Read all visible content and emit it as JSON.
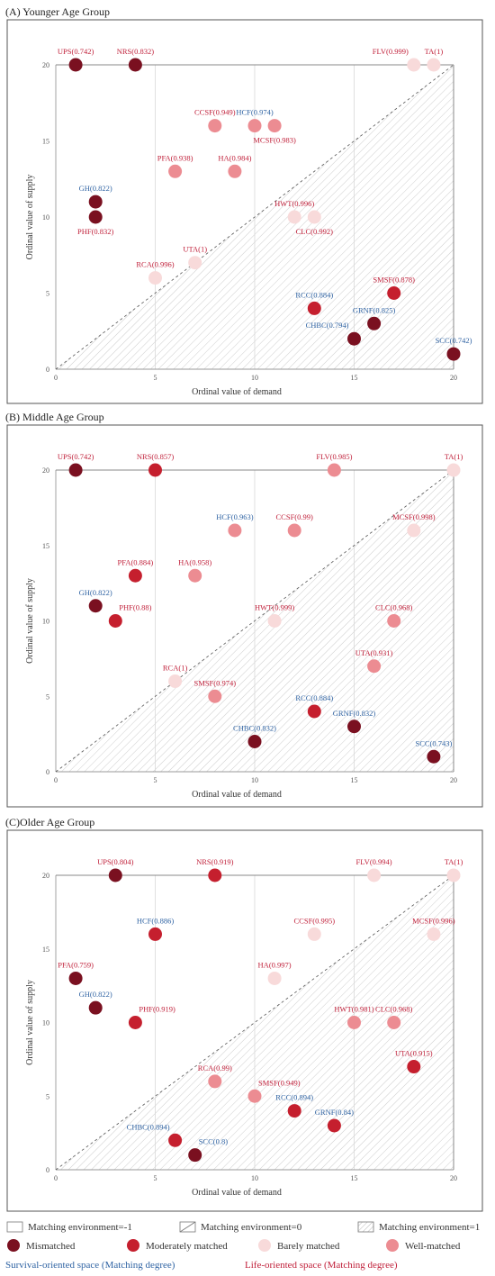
{
  "colors": {
    "Mismatched": "#7a1020",
    "Moderately matched": "#c51f2e",
    "Barely matched": "#f8dada",
    "Well-matched": "#ec8c92",
    "survival": "#2f63a3",
    "life": "#c0203a"
  },
  "chart_data": [
    {
      "type": "scatter",
      "title": "(A) Younger Age Group",
      "xlabel": "Ordinal  value of demand",
      "ylabel": "Ordinal  value of supply",
      "xlim": [
        0,
        20
      ],
      "ylim": [
        0,
        20
      ],
      "xticks": [
        "0",
        "5",
        "10",
        "15",
        "20"
      ],
      "yticks": [
        "0",
        "5",
        "10",
        "15",
        "20"
      ],
      "points": [
        {
          "label": "UPS(0.742)",
          "x": 1,
          "y": 20,
          "cat": "Mismatched",
          "space": "life",
          "lp": "above"
        },
        {
          "label": "NRS(0.832)",
          "x": 4,
          "y": 20,
          "cat": "Mismatched",
          "space": "life",
          "lp": "above"
        },
        {
          "label": "FLV(0.999)",
          "x": 18,
          "y": 20,
          "cat": "Barely matched",
          "space": "life",
          "lp": "above-left"
        },
        {
          "label": "TA(1)",
          "x": 19,
          "y": 20,
          "cat": "Barely matched",
          "space": "life",
          "lp": "above"
        },
        {
          "label": "CCSF(0.949)",
          "x": 8,
          "y": 16,
          "cat": "Well-matched",
          "space": "life",
          "lp": "above"
        },
        {
          "label": "HCF(0.974)",
          "x": 10,
          "y": 16,
          "cat": "Well-matched",
          "space": "survival",
          "lp": "above"
        },
        {
          "label": "MCSF(0.983)",
          "x": 11,
          "y": 16,
          "cat": "Well-matched",
          "space": "life",
          "lp": "below"
        },
        {
          "label": "PFA(0.938)",
          "x": 6,
          "y": 13,
          "cat": "Well-matched",
          "space": "life",
          "lp": "above"
        },
        {
          "label": "HA(0.984)",
          "x": 9,
          "y": 13,
          "cat": "Well-matched",
          "space": "life",
          "lp": "above"
        },
        {
          "label": "GH(0.822)",
          "x": 2,
          "y": 11,
          "cat": "Mismatched",
          "space": "survival",
          "lp": "above"
        },
        {
          "label": "PHF(0.832)",
          "x": 2,
          "y": 10,
          "cat": "Mismatched",
          "space": "life",
          "lp": "below"
        },
        {
          "label": "HWT(0.996)",
          "x": 12,
          "y": 10,
          "cat": "Barely matched",
          "space": "life",
          "lp": "above"
        },
        {
          "label": "CLC(0.992)",
          "x": 13,
          "y": 10,
          "cat": "Barely matched",
          "space": "life",
          "lp": "below"
        },
        {
          "label": "UTA(1)",
          "x": 7,
          "y": 7,
          "cat": "Barely matched",
          "space": "life",
          "lp": "above"
        },
        {
          "label": "RCA(0.996)",
          "x": 5,
          "y": 6,
          "cat": "Barely matched",
          "space": "life",
          "lp": "above"
        },
        {
          "label": "SMSF(0.878)",
          "x": 17,
          "y": 5,
          "cat": "Moderately matched",
          "space": "life",
          "lp": "above"
        },
        {
          "label": "RCC(0.884)",
          "x": 13,
          "y": 4,
          "cat": "Moderately matched",
          "space": "survival",
          "lp": "above"
        },
        {
          "label": "GRNF(0.825)",
          "x": 16,
          "y": 3,
          "cat": "Mismatched",
          "space": "survival",
          "lp": "above"
        },
        {
          "label": "CHBC(0.794)",
          "x": 15,
          "y": 2,
          "cat": "Mismatched",
          "space": "survival",
          "lp": "above-left"
        },
        {
          "label": "SCC(0.742)",
          "x": 20,
          "y": 1,
          "cat": "Mismatched",
          "space": "survival",
          "lp": "above"
        }
      ]
    },
    {
      "type": "scatter",
      "title": "(B) Middle Age Group",
      "xlabel": "Ordinal value of demand",
      "ylabel": "Ordinal value of supply",
      "xlim": [
        0,
        20
      ],
      "ylim": [
        0,
        20
      ],
      "xticks": [
        "0",
        "5",
        "10",
        "15",
        "20"
      ],
      "yticks": [
        "0",
        "5",
        "10",
        "15",
        "20"
      ],
      "points": [
        {
          "label": "UPS(0.742)",
          "x": 1,
          "y": 20,
          "cat": "Mismatched",
          "space": "life",
          "lp": "above"
        },
        {
          "label": "NRS(0.857)",
          "x": 5,
          "y": 20,
          "cat": "Moderately matched",
          "space": "life",
          "lp": "above"
        },
        {
          "label": "FLV(0.985)",
          "x": 14,
          "y": 20,
          "cat": "Well-matched",
          "space": "life",
          "lp": "above"
        },
        {
          "label": "TA(1)",
          "x": 20,
          "y": 20,
          "cat": "Barely matched",
          "space": "life",
          "lp": "above"
        },
        {
          "label": "HCF(0.963)",
          "x": 9,
          "y": 16,
          "cat": "Well-matched",
          "space": "survival",
          "lp": "above"
        },
        {
          "label": "CCSF(0.99)",
          "x": 12,
          "y": 16,
          "cat": "Well-matched",
          "space": "life",
          "lp": "above"
        },
        {
          "label": "MCSF(0.998)",
          "x": 18,
          "y": 16,
          "cat": "Barely matched",
          "space": "life",
          "lp": "above"
        },
        {
          "label": "PFA(0.884)",
          "x": 4,
          "y": 13,
          "cat": "Moderately matched",
          "space": "life",
          "lp": "above"
        },
        {
          "label": "HA(0.958)",
          "x": 7,
          "y": 13,
          "cat": "Well-matched",
          "space": "life",
          "lp": "above"
        },
        {
          "label": "GH(0.822)",
          "x": 2,
          "y": 11,
          "cat": "Mismatched",
          "space": "survival",
          "lp": "above"
        },
        {
          "label": "PHF(0.88)",
          "x": 3,
          "y": 10,
          "cat": "Moderately matched",
          "space": "life",
          "lp": "above-right"
        },
        {
          "label": "HWT(0.999)",
          "x": 11,
          "y": 10,
          "cat": "Barely matched",
          "space": "life",
          "lp": "above"
        },
        {
          "label": "CLC(0.968)",
          "x": 17,
          "y": 10,
          "cat": "Well-matched",
          "space": "life",
          "lp": "above"
        },
        {
          "label": "UTA(0.931)",
          "x": 16,
          "y": 7,
          "cat": "Well-matched",
          "space": "life",
          "lp": "above"
        },
        {
          "label": "RCA(1)",
          "x": 6,
          "y": 6,
          "cat": "Barely matched",
          "space": "life",
          "lp": "above"
        },
        {
          "label": "SMSF(0.974)",
          "x": 8,
          "y": 5,
          "cat": "Well-matched",
          "space": "life",
          "lp": "above"
        },
        {
          "label": "RCC(0.884)",
          "x": 13,
          "y": 4,
          "cat": "Moderately matched",
          "space": "survival",
          "lp": "above"
        },
        {
          "label": "GRNF(0.832)",
          "x": 15,
          "y": 3,
          "cat": "Mismatched",
          "space": "survival",
          "lp": "above"
        },
        {
          "label": "CHBC(0.832)",
          "x": 10,
          "y": 2,
          "cat": "Mismatched",
          "space": "survival",
          "lp": "above"
        },
        {
          "label": "SCC(0.743)",
          "x": 19,
          "y": 1,
          "cat": "Mismatched",
          "space": "survival",
          "lp": "above"
        }
      ]
    },
    {
      "type": "scatter",
      "title": "(C)Older Age Group",
      "xlabel": "Ordinal value of demand",
      "ylabel": "Ordinal value of supply",
      "xlim": [
        0,
        20
      ],
      "ylim": [
        0,
        20
      ],
      "xticks": [
        "0",
        "5",
        "10",
        "15",
        "20"
      ],
      "yticks": [
        "0",
        "5",
        "10",
        "15",
        "20"
      ],
      "points": [
        {
          "label": "UPS(0.804)",
          "x": 3,
          "y": 20,
          "cat": "Mismatched",
          "space": "life",
          "lp": "above"
        },
        {
          "label": "NRS(0.919)",
          "x": 8,
          "y": 20,
          "cat": "Moderately matched",
          "space": "life",
          "lp": "above"
        },
        {
          "label": "FLV(0.994)",
          "x": 16,
          "y": 20,
          "cat": "Barely matched",
          "space": "life",
          "lp": "above"
        },
        {
          "label": "TA(1)",
          "x": 20,
          "y": 20,
          "cat": "Barely matched",
          "space": "life",
          "lp": "above"
        },
        {
          "label": "HCF(0.886)",
          "x": 5,
          "y": 16,
          "cat": "Moderately matched",
          "space": "survival",
          "lp": "above"
        },
        {
          "label": "CCSF(0.995)",
          "x": 13,
          "y": 16,
          "cat": "Barely matched",
          "space": "life",
          "lp": "above"
        },
        {
          "label": "MCSF(0.996)",
          "x": 19,
          "y": 16,
          "cat": "Barely matched",
          "space": "life",
          "lp": "above"
        },
        {
          "label": "PFA(0.759)",
          "x": 1,
          "y": 13,
          "cat": "Mismatched",
          "space": "life",
          "lp": "above"
        },
        {
          "label": "HA(0.997)",
          "x": 11,
          "y": 13,
          "cat": "Barely matched",
          "space": "life",
          "lp": "above"
        },
        {
          "label": "GH(0.822)",
          "x": 2,
          "y": 11,
          "cat": "Mismatched",
          "space": "survival",
          "lp": "above"
        },
        {
          "label": "PHF(0.919)",
          "x": 4,
          "y": 10,
          "cat": "Moderately matched",
          "space": "life",
          "lp": "above-right"
        },
        {
          "label": "HWT(0.981)",
          "x": 15,
          "y": 10,
          "cat": "Well-matched",
          "space": "life",
          "lp": "above"
        },
        {
          "label": "CLC(0.968)",
          "x": 17,
          "y": 10,
          "cat": "Well-matched",
          "space": "life",
          "lp": "above"
        },
        {
          "label": "UTA(0.915)",
          "x": 18,
          "y": 7,
          "cat": "Moderately matched",
          "space": "life",
          "lp": "above"
        },
        {
          "label": "RCA(0.99)",
          "x": 8,
          "y": 6,
          "cat": "Well-matched",
          "space": "life",
          "lp": "above"
        },
        {
          "label": "SMSF(0.949)",
          "x": 10,
          "y": 5,
          "cat": "Well-matched",
          "space": "life",
          "lp": "above-right"
        },
        {
          "label": "RCC(0.894)",
          "x": 12,
          "y": 4,
          "cat": "Moderately matched",
          "space": "survival",
          "lp": "above"
        },
        {
          "label": "GRNF(0.84)",
          "x": 14,
          "y": 3,
          "cat": "Moderately matched",
          "space": "survival",
          "lp": "above"
        },
        {
          "label": "CHBC(0.894)",
          "x": 6,
          "y": 2,
          "cat": "Moderately matched",
          "space": "survival",
          "lp": "above-left"
        },
        {
          "label": "SCC(0.8)",
          "x": 7,
          "y": 1,
          "cat": "Mismatched",
          "space": "survival",
          "lp": "above-right"
        }
      ]
    }
  ],
  "legend": {
    "env_none": "Matching environment=-1",
    "env_zero": "Matching environment=0",
    "env_one": "Matching environment=1",
    "mismatched": "Mismatched",
    "moderately": "Moderately matched",
    "barely": "Barely matched",
    "well": "Well-matched",
    "survival_space": "Survival-oriented space (Matching degree)",
    "life_space": "Life-oriented space (Matching degree)"
  }
}
